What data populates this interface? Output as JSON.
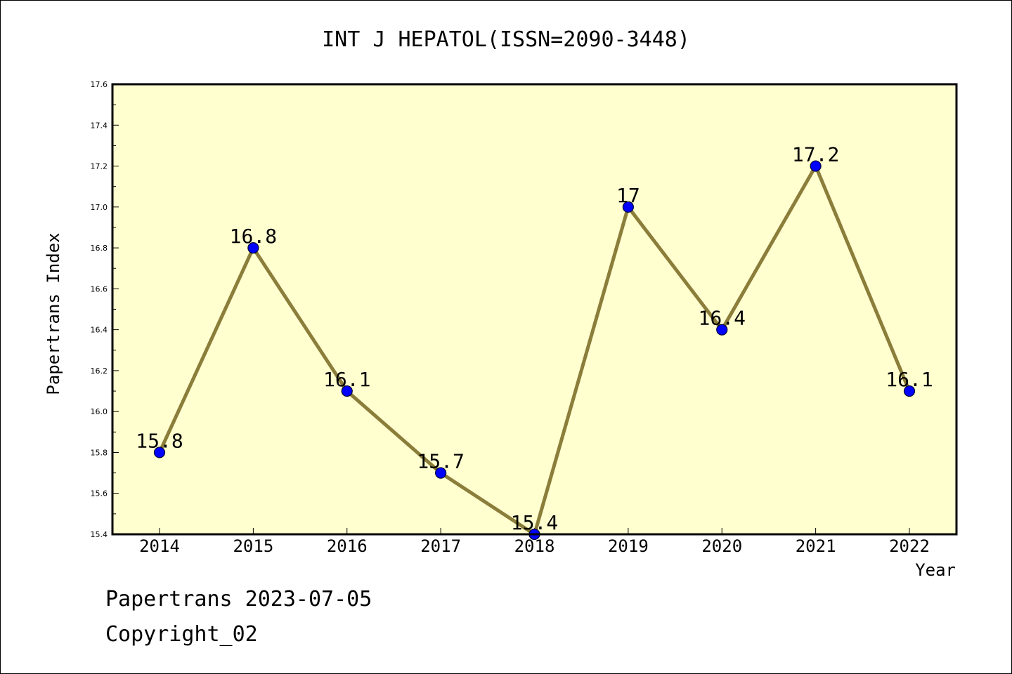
{
  "chart_data": {
    "type": "line",
    "title": "INT J HEPATOL(ISSN=2090-3448)",
    "xlabel": "Year",
    "ylabel": "Papertrans Index",
    "categories": [
      "2014",
      "2015",
      "2016",
      "2017",
      "2018",
      "2019",
      "2020",
      "2021",
      "2022"
    ],
    "values": [
      15.8,
      16.8,
      16.1,
      15.7,
      15.4,
      17.0,
      16.4,
      17.2,
      16.1
    ],
    "data_labels": [
      "15.8",
      "16.8",
      "16.1",
      "15.7",
      "15.4",
      "17",
      "16.4",
      "17.2",
      "16.1"
    ],
    "ylim": [
      15.4,
      17.6
    ],
    "yticks": [
      "15.4",
      "15.6",
      "15.8",
      "16.0",
      "16.2",
      "16.4",
      "16.6",
      "16.8",
      "17.0",
      "17.2",
      "17.4",
      "17.6"
    ],
    "grid": false,
    "legend": "none",
    "colors": {
      "plot_background": "#ffffd0",
      "line": "#8b7d3a",
      "marker_fill": "#0000ff",
      "marker_edge": "#000033"
    }
  },
  "footer": {
    "date_line": "Papertrans 2023-07-05",
    "copyright_line": "Copyright_02"
  }
}
